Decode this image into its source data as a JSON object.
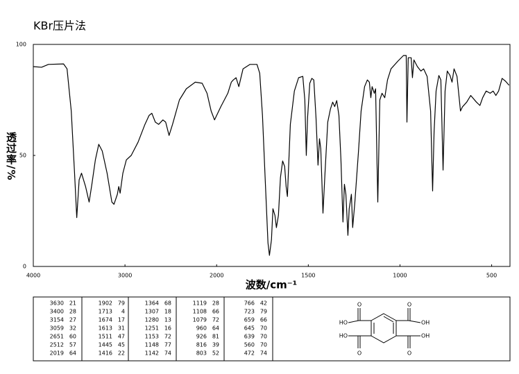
{
  "chart_data": {
    "type": "line",
    "title": "KBr压片法",
    "xlabel": "波数/cm⁻¹",
    "ylabel": "透过率/%",
    "xlim": [
      4000,
      400
    ],
    "x_scale_change_at": 2000,
    "x_scale_ratio": 2,
    "xticks": [
      4000,
      3000,
      2000,
      1500,
      1000,
      500
    ],
    "ylim": [
      0,
      100
    ],
    "yticks": [
      0,
      50,
      100
    ],
    "color": "#000000",
    "x": [
      4000,
      3910,
      3835,
      3670,
      3632,
      3586,
      3550,
      3526,
      3500,
      3474,
      3430,
      3391,
      3361,
      3323,
      3286,
      3248,
      3195,
      3143,
      3120,
      3083,
      3068,
      3053,
      3023,
      2985,
      2932,
      2857,
      2782,
      2737,
      2707,
      2669,
      2632,
      2586,
      2556,
      2519,
      2481,
      2406,
      2331,
      2233,
      2158,
      2105,
      2060,
      2023,
      1977,
      1939,
      1920,
      1909,
      1894,
      1879,
      1856,
      1818,
      1780,
      1765,
      1750,
      1735,
      1720,
      1712,
      1701,
      1693,
      1682,
      1674,
      1663,
      1652,
      1640,
      1629,
      1621,
      1614,
      1598,
      1576,
      1553,
      1530,
      1519,
      1511,
      1504,
      1492,
      1481,
      1470,
      1458,
      1447,
      1439,
      1432,
      1420,
      1409,
      1394,
      1379,
      1367,
      1356,
      1345,
      1333,
      1322,
      1311,
      1303,
      1295,
      1284,
      1277,
      1265,
      1258,
      1246,
      1227,
      1212,
      1193,
      1178,
      1167,
      1159,
      1152,
      1140,
      1133,
      1121,
      1110,
      1098,
      1083,
      1068,
      1049,
      1011,
      981,
      966,
      962,
      955,
      939,
      932,
      924,
      905,
      886,
      871,
      852,
      833,
      822,
      814,
      803,
      788,
      777,
      765,
      754,
      742,
      727,
      716,
      705,
      689,
      670,
      659,
      636,
      614,
      583,
      564,
      549,
      530,
      508,
      492,
      477,
      462,
      443,
      424,
      405
    ],
    "values": [
      90,
      89.7,
      91,
      91.2,
      89,
      70,
      42,
      22,
      39,
      42,
      36,
      29,
      37,
      48,
      55,
      52,
      42,
      29,
      28,
      32.5,
      36,
      33,
      42,
      48,
      50,
      56,
      64,
      68,
      69,
      65,
      64,
      66,
      65,
      59,
      64,
      75,
      80,
      83,
      82.5,
      78,
      70,
      66,
      72,
      78,
      83,
      84,
      85,
      81,
      89,
      91,
      91,
      87,
      68,
      39,
      10.6,
      5,
      12,
      26,
      23,
      17.5,
      23,
      40,
      47.5,
      45,
      36,
      31.5,
      64,
      79,
      85,
      85.6,
      75,
      50,
      67,
      82.5,
      84.7,
      84,
      67,
      45.6,
      57.5,
      53,
      24,
      42,
      65,
      71,
      74,
      72,
      74.7,
      68,
      48,
      20,
      37,
      32.5,
      14,
      26,
      32.5,
      17.5,
      29,
      51,
      70,
      81,
      84,
      83,
      76,
      81,
      78,
      80,
      29,
      75,
      78,
      76,
      84,
      89,
      92.5,
      95,
      95,
      65,
      94,
      94,
      85,
      93,
      90,
      88,
      89,
      85.6,
      70,
      34,
      60.6,
      79,
      86,
      84,
      43.4,
      79,
      88,
      86,
      83,
      89,
      85.6,
      70,
      71.9,
      74,
      77,
      74,
      72.5,
      76,
      79,
      78,
      79,
      77,
      79,
      84.7,
      83.4,
      81.6
    ]
  },
  "peak_table": [
    [
      [
        3630,
        21
      ],
      [
        3400,
        28
      ],
      [
        3154,
        27
      ],
      [
        3059,
        32
      ],
      [
        2651,
        60
      ],
      [
        2512,
        57
      ],
      [
        2019,
        64
      ]
    ],
    [
      [
        1902,
        79
      ],
      [
        1713,
        4
      ],
      [
        1674,
        17
      ],
      [
        1613,
        31
      ],
      [
        1511,
        47
      ],
      [
        1445,
        45
      ],
      [
        1416,
        22
      ]
    ],
    [
      [
        1364,
        68
      ],
      [
        1307,
        18
      ],
      [
        1280,
        13
      ],
      [
        1251,
        16
      ],
      [
        1153,
        72
      ],
      [
        1148,
        77
      ],
      [
        1142,
        74
      ]
    ],
    [
      [
        1119,
        28
      ],
      [
        1108,
        66
      ],
      [
        1079,
        72
      ],
      [
        960,
        64
      ],
      [
        926,
        81
      ],
      [
        816,
        39
      ],
      [
        803,
        52
      ]
    ],
    [
      [
        766,
        42
      ],
      [
        723,
        79
      ],
      [
        659,
        66
      ],
      [
        645,
        70
      ],
      [
        639,
        70
      ],
      [
        560,
        70
      ],
      [
        472,
        74
      ]
    ]
  ],
  "structure": {
    "labels": [
      "O",
      "O",
      "HO",
      "OH",
      "HO",
      "OH",
      "O",
      "O"
    ]
  }
}
